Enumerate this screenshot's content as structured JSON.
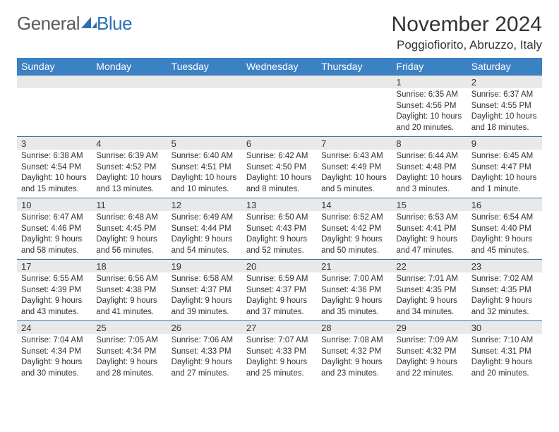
{
  "logo": {
    "text1": "General",
    "text2": "Blue"
  },
  "title": "November 2024",
  "location": "Poggiofiorito, Abruzzo, Italy",
  "colors": {
    "header_bg": "#3b82c4",
    "header_text": "#ffffff",
    "row_separator": "#3b6fa5",
    "daynum_bg": "#e9e9e9",
    "text": "#333333",
    "logo_gray": "#5a5a5a",
    "logo_blue": "#2d6fb5",
    "page_bg": "#ffffff"
  },
  "fonts": {
    "title_size_pt": 22,
    "location_size_pt": 13,
    "dayheader_size_pt": 11,
    "daynum_size_pt": 10,
    "body_size_pt": 9
  },
  "weekdays": [
    "Sunday",
    "Monday",
    "Tuesday",
    "Wednesday",
    "Thursday",
    "Friday",
    "Saturday"
  ],
  "weeks": [
    [
      null,
      null,
      null,
      null,
      null,
      {
        "n": "1",
        "sunrise": "6:35 AM",
        "sunset": "4:56 PM",
        "dl": "10 hours and 20 minutes."
      },
      {
        "n": "2",
        "sunrise": "6:37 AM",
        "sunset": "4:55 PM",
        "dl": "10 hours and 18 minutes."
      }
    ],
    [
      {
        "n": "3",
        "sunrise": "6:38 AM",
        "sunset": "4:54 PM",
        "dl": "10 hours and 15 minutes."
      },
      {
        "n": "4",
        "sunrise": "6:39 AM",
        "sunset": "4:52 PM",
        "dl": "10 hours and 13 minutes."
      },
      {
        "n": "5",
        "sunrise": "6:40 AM",
        "sunset": "4:51 PM",
        "dl": "10 hours and 10 minutes."
      },
      {
        "n": "6",
        "sunrise": "6:42 AM",
        "sunset": "4:50 PM",
        "dl": "10 hours and 8 minutes."
      },
      {
        "n": "7",
        "sunrise": "6:43 AM",
        "sunset": "4:49 PM",
        "dl": "10 hours and 5 minutes."
      },
      {
        "n": "8",
        "sunrise": "6:44 AM",
        "sunset": "4:48 PM",
        "dl": "10 hours and 3 minutes."
      },
      {
        "n": "9",
        "sunrise": "6:45 AM",
        "sunset": "4:47 PM",
        "dl": "10 hours and 1 minute."
      }
    ],
    [
      {
        "n": "10",
        "sunrise": "6:47 AM",
        "sunset": "4:46 PM",
        "dl": "9 hours and 58 minutes."
      },
      {
        "n": "11",
        "sunrise": "6:48 AM",
        "sunset": "4:45 PM",
        "dl": "9 hours and 56 minutes."
      },
      {
        "n": "12",
        "sunrise": "6:49 AM",
        "sunset": "4:44 PM",
        "dl": "9 hours and 54 minutes."
      },
      {
        "n": "13",
        "sunrise": "6:50 AM",
        "sunset": "4:43 PM",
        "dl": "9 hours and 52 minutes."
      },
      {
        "n": "14",
        "sunrise": "6:52 AM",
        "sunset": "4:42 PM",
        "dl": "9 hours and 50 minutes."
      },
      {
        "n": "15",
        "sunrise": "6:53 AM",
        "sunset": "4:41 PM",
        "dl": "9 hours and 47 minutes."
      },
      {
        "n": "16",
        "sunrise": "6:54 AM",
        "sunset": "4:40 PM",
        "dl": "9 hours and 45 minutes."
      }
    ],
    [
      {
        "n": "17",
        "sunrise": "6:55 AM",
        "sunset": "4:39 PM",
        "dl": "9 hours and 43 minutes."
      },
      {
        "n": "18",
        "sunrise": "6:56 AM",
        "sunset": "4:38 PM",
        "dl": "9 hours and 41 minutes."
      },
      {
        "n": "19",
        "sunrise": "6:58 AM",
        "sunset": "4:37 PM",
        "dl": "9 hours and 39 minutes."
      },
      {
        "n": "20",
        "sunrise": "6:59 AM",
        "sunset": "4:37 PM",
        "dl": "9 hours and 37 minutes."
      },
      {
        "n": "21",
        "sunrise": "7:00 AM",
        "sunset": "4:36 PM",
        "dl": "9 hours and 35 minutes."
      },
      {
        "n": "22",
        "sunrise": "7:01 AM",
        "sunset": "4:35 PM",
        "dl": "9 hours and 34 minutes."
      },
      {
        "n": "23",
        "sunrise": "7:02 AM",
        "sunset": "4:35 PM",
        "dl": "9 hours and 32 minutes."
      }
    ],
    [
      {
        "n": "24",
        "sunrise": "7:04 AM",
        "sunset": "4:34 PM",
        "dl": "9 hours and 30 minutes."
      },
      {
        "n": "25",
        "sunrise": "7:05 AM",
        "sunset": "4:34 PM",
        "dl": "9 hours and 28 minutes."
      },
      {
        "n": "26",
        "sunrise": "7:06 AM",
        "sunset": "4:33 PM",
        "dl": "9 hours and 27 minutes."
      },
      {
        "n": "27",
        "sunrise": "7:07 AM",
        "sunset": "4:33 PM",
        "dl": "9 hours and 25 minutes."
      },
      {
        "n": "28",
        "sunrise": "7:08 AM",
        "sunset": "4:32 PM",
        "dl": "9 hours and 23 minutes."
      },
      {
        "n": "29",
        "sunrise": "7:09 AM",
        "sunset": "4:32 PM",
        "dl": "9 hours and 22 minutes."
      },
      {
        "n": "30",
        "sunrise": "7:10 AM",
        "sunset": "4:31 PM",
        "dl": "9 hours and 20 minutes."
      }
    ]
  ],
  "labels": {
    "sunrise": "Sunrise:",
    "sunset": "Sunset:",
    "daylight": "Daylight:"
  }
}
